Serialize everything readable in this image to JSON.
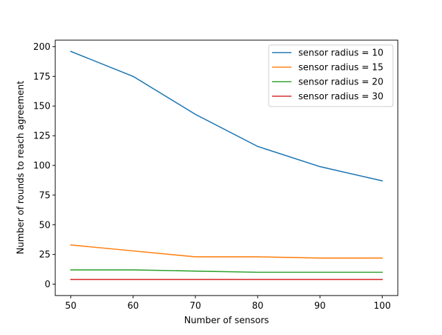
{
  "chart_data": {
    "type": "line",
    "title": "",
    "xlabel": "Number of sensors",
    "ylabel": "Number of rounds to reach agreement",
    "x": [
      50,
      60,
      70,
      80,
      90,
      100
    ],
    "xlim": [
      47.5,
      102.5
    ],
    "ylim": [
      -9.6,
      205.5
    ],
    "xticks": [
      50,
      60,
      70,
      80,
      90,
      100
    ],
    "yticks": [
      0,
      25,
      50,
      75,
      100,
      125,
      150,
      175,
      200
    ],
    "grid": false,
    "legend_position": "top-right",
    "series": [
      {
        "name": "sensor radius = 10",
        "color": "#1f77b4",
        "values": [
          196,
          175,
          143,
          116,
          99,
          87
        ]
      },
      {
        "name": "sensor radius = 15",
        "color": "#ff7f0e",
        "values": [
          33,
          28,
          23,
          23,
          22,
          22
        ]
      },
      {
        "name": "sensor radius = 20",
        "color": "#2ca02c",
        "values": [
          12,
          12,
          11,
          10,
          10,
          10
        ]
      },
      {
        "name": "sensor radius = 30",
        "color": "#d62728",
        "values": [
          4,
          4,
          4,
          4,
          4,
          4
        ]
      }
    ]
  }
}
